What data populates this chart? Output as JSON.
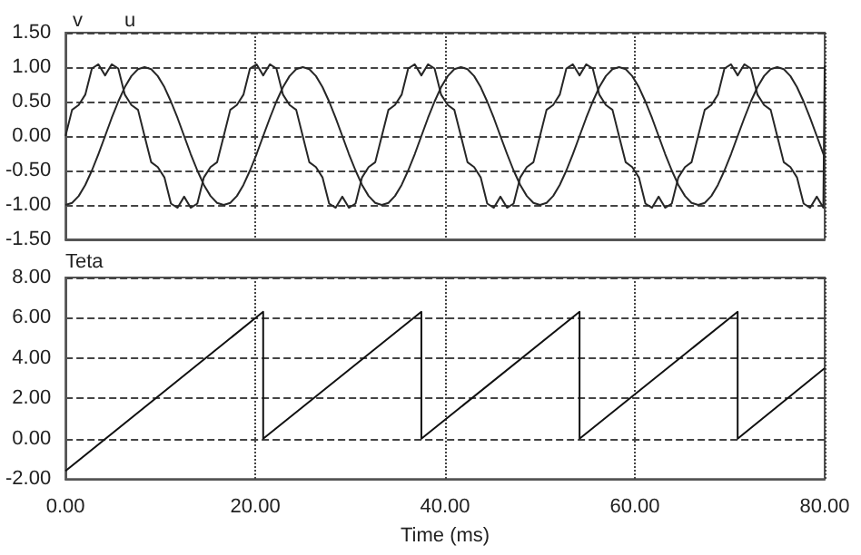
{
  "chart_data": [
    {
      "type": "line",
      "xlim": [
        0,
        80
      ],
      "xticks": [
        0,
        20,
        40,
        60,
        80
      ],
      "ylim": [
        -1.5,
        1.5
      ],
      "yticks": [
        {
          "value": -1.5,
          "label": "-1.50"
        },
        {
          "value": -1,
          "label": "-1.00"
        },
        {
          "value": -0.5,
          "label": "-0.50"
        },
        {
          "value": 0,
          "label": "0.00"
        },
        {
          "value": 0.5,
          "label": "0.50"
        },
        {
          "value": 1,
          "label": "1.00"
        },
        {
          "value": 1.5,
          "label": "1.50"
        }
      ],
      "tick_labels": "y",
      "grid": true,
      "legend": "top left",
      "marker": "none",
      "x": [
        0,
        0.69,
        1.39,
        2.08,
        2.78,
        3.47,
        4.17,
        4.86,
        5.56,
        6.25,
        6.94,
        7.64,
        8.33,
        9.03,
        9.72,
        10.42,
        11.11,
        11.81,
        12.5,
        13.19,
        13.89,
        14.58,
        15.28,
        15.97,
        16.67,
        17.36,
        18.06,
        18.75,
        19.44,
        20.14,
        20.83,
        21.53,
        22.22,
        22.92,
        23.61,
        24.31,
        25,
        25.69,
        26.39,
        27.08,
        27.78,
        28.47,
        29.17,
        29.86,
        30.56,
        31.25,
        31.94,
        32.64,
        33.33,
        34.03,
        34.72,
        35.42,
        36.11,
        36.81,
        37.5,
        38.19,
        38.89,
        39.58,
        40.28,
        40.97,
        41.67,
        42.36,
        43.06,
        43.75,
        44.44,
        45.14,
        45.83,
        46.53,
        47.22,
        47.92,
        48.61,
        49.31,
        50,
        50.69,
        51.39,
        52.08,
        52.78,
        53.47,
        54.17,
        54.86,
        55.56,
        56.25,
        56.94,
        57.64,
        58.33,
        59.03,
        59.72,
        60.42,
        61.11,
        61.81,
        62.5,
        63.19,
        63.89,
        64.58,
        65.28,
        65.97,
        66.67,
        67.36,
        68.06,
        68.75,
        69.44,
        70.14,
        70.83,
        71.53,
        72.22,
        72.92,
        73.61,
        74.31,
        75,
        75.69,
        76.39,
        77.08,
        77.78,
        78.47,
        79.17,
        79.86,
        80
      ],
      "series": [
        {
          "name": "v",
          "color": "#262626",
          "values": [
            0,
            0.38,
            0.45,
            0.6,
            0.98,
            1.04,
            0.88,
            1.04,
            0.98,
            0.6,
            0.45,
            0.38,
            0,
            -0.38,
            -0.45,
            -0.6,
            -0.98,
            -1.04,
            -0.88,
            -1.04,
            -0.98,
            -0.6,
            -0.45,
            -0.38,
            0,
            0.38,
            0.45,
            0.6,
            0.98,
            1.04,
            0.88,
            1.04,
            0.98,
            0.6,
            0.45,
            0.38,
            0,
            -0.38,
            -0.45,
            -0.6,
            -0.98,
            -1.04,
            -0.88,
            -1.04,
            -0.98,
            -0.6,
            -0.45,
            -0.38,
            0,
            0.38,
            0.45,
            0.6,
            0.98,
            1.04,
            0.88,
            1.04,
            0.98,
            0.6,
            0.45,
            0.38,
            0,
            -0.38,
            -0.45,
            -0.6,
            -0.98,
            -1.04,
            -0.88,
            -1.04,
            -0.98,
            -0.6,
            -0.45,
            -0.38,
            0,
            0.38,
            0.45,
            0.6,
            0.98,
            1.04,
            0.88,
            1.04,
            0.98,
            0.6,
            0.45,
            0.38,
            0,
            -0.38,
            -0.45,
            -0.6,
            -0.98,
            -1.04,
            -0.88,
            -1.04,
            -0.98,
            -0.6,
            -0.45,
            -0.38,
            0,
            0.38,
            0.45,
            0.6,
            0.98,
            1.04,
            0.88,
            1.04,
            0.98,
            0.6,
            0.45,
            0.38,
            0,
            -0.38,
            -0.45,
            -0.6,
            -0.98,
            -1.04,
            -0.88,
            -1.04,
            1.02
          ]
        },
        {
          "name": "u",
          "color": "#262626",
          "values": [
            -1,
            -0.97,
            -0.87,
            -0.71,
            -0.5,
            -0.26,
            0,
            0.26,
            0.5,
            0.71,
            0.87,
            0.97,
            1,
            0.97,
            0.87,
            0.71,
            0.5,
            0.26,
            0,
            -0.26,
            -0.5,
            -0.71,
            -0.87,
            -0.97,
            -1,
            -0.97,
            -0.87,
            -0.71,
            -0.5,
            -0.26,
            0,
            0.26,
            0.5,
            0.71,
            0.87,
            0.97,
            1,
            0.97,
            0.87,
            0.71,
            0.5,
            0.26,
            0,
            -0.26,
            -0.5,
            -0.71,
            -0.87,
            -0.97,
            -1,
            -0.97,
            -0.87,
            -0.71,
            -0.5,
            -0.26,
            0,
            0.26,
            0.5,
            0.71,
            0.87,
            0.97,
            1,
            0.97,
            0.87,
            0.71,
            0.5,
            0.26,
            0,
            -0.26,
            -0.5,
            -0.71,
            -0.87,
            -0.97,
            -1,
            -0.97,
            -0.87,
            -0.71,
            -0.5,
            -0.26,
            0,
            0.26,
            0.5,
            0.71,
            0.87,
            0.97,
            1,
            0.97,
            0.87,
            0.71,
            0.5,
            0.26,
            0,
            -0.26,
            -0.5,
            -0.71,
            -0.87,
            -0.97,
            -1,
            -0.97,
            -0.87,
            -0.71,
            -0.5,
            -0.26,
            0,
            0.26,
            0.5,
            0.71,
            0.87,
            0.97,
            1,
            0.97,
            0.87,
            0.71,
            0.5,
            0.26,
            0,
            -0.26,
            -0.31
          ]
        }
      ]
    },
    {
      "type": "line",
      "ylabel": "Teta",
      "xlabel": "Time (ms)",
      "xlim": [
        0,
        80
      ],
      "xticks": [
        {
          "value": 0,
          "label": "0.00"
        },
        {
          "value": 20,
          "label": "20.00"
        },
        {
          "value": 40,
          "label": "40.00"
        },
        {
          "value": 60,
          "label": "60.00"
        },
        {
          "value": 80,
          "label": "80.00"
        }
      ],
      "ylim": [
        -2,
        8
      ],
      "yticks": [
        {
          "value": -2,
          "label": "-2.00"
        },
        {
          "value": 0,
          "label": "0.00"
        },
        {
          "value": 2,
          "label": "2.00"
        },
        {
          "value": 4,
          "label": "4.00"
        },
        {
          "value": 6,
          "label": "6.00"
        },
        {
          "value": 8,
          "label": "8.00"
        }
      ],
      "grid": true,
      "marker": "none",
      "series": [
        {
          "color": "#111111",
          "x": [
            0,
            20.83,
            20.83,
            37.5,
            37.5,
            54.17,
            54.17,
            70.83,
            70.83,
            80
          ],
          "values": [
            -1.6,
            6.3,
            0,
            6.3,
            0,
            6.3,
            0,
            6.3,
            0,
            3.5
          ]
        }
      ]
    }
  ]
}
